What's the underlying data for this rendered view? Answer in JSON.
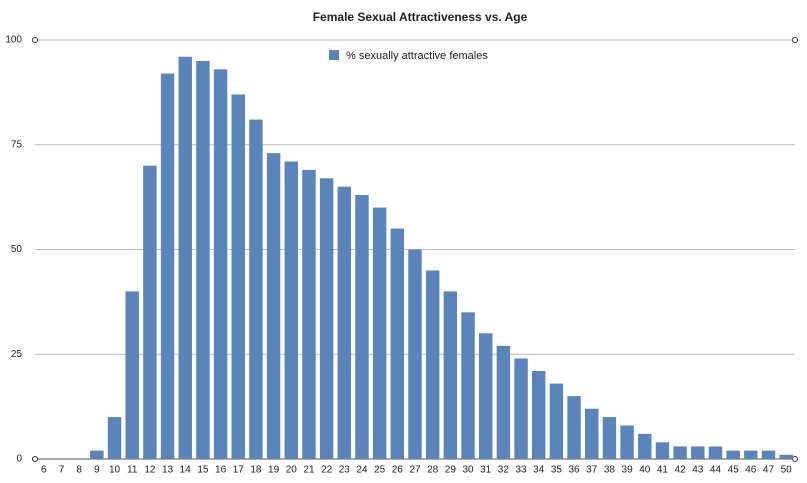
{
  "chart_data": {
    "type": "bar",
    "title": "Female Sexual Attractiveness vs. Age",
    "categories": [
      "6",
      "7",
      "8",
      "9",
      "10",
      "11",
      "12",
      "13",
      "14",
      "15",
      "16",
      "17",
      "18",
      "19",
      "20",
      "21",
      "22",
      "23",
      "24",
      "25",
      "26",
      "27",
      "28",
      "29",
      "30",
      "31",
      "32",
      "33",
      "34",
      "35",
      "36",
      "37",
      "38",
      "39",
      "40",
      "41",
      "42",
      "43",
      "44",
      "45",
      "46",
      "47",
      "50"
    ],
    "series": [
      {
        "name": "% sexually attractive females",
        "color": "#5b84bb",
        "values": [
          0,
          0,
          0,
          2,
          10,
          40,
          70,
          92,
          96,
          95,
          93,
          87,
          81,
          73,
          71,
          69,
          67,
          65,
          63,
          60,
          55,
          50,
          45,
          40,
          35,
          30,
          27,
          24,
          21,
          18,
          15,
          12,
          10,
          8,
          6,
          4,
          3,
          3,
          3,
          2,
          2,
          2,
          1
        ]
      }
    ],
    "ylim": [
      0,
      100
    ],
    "yticks": [
      0,
      25,
      50,
      75,
      100
    ],
    "grid": true
  }
}
